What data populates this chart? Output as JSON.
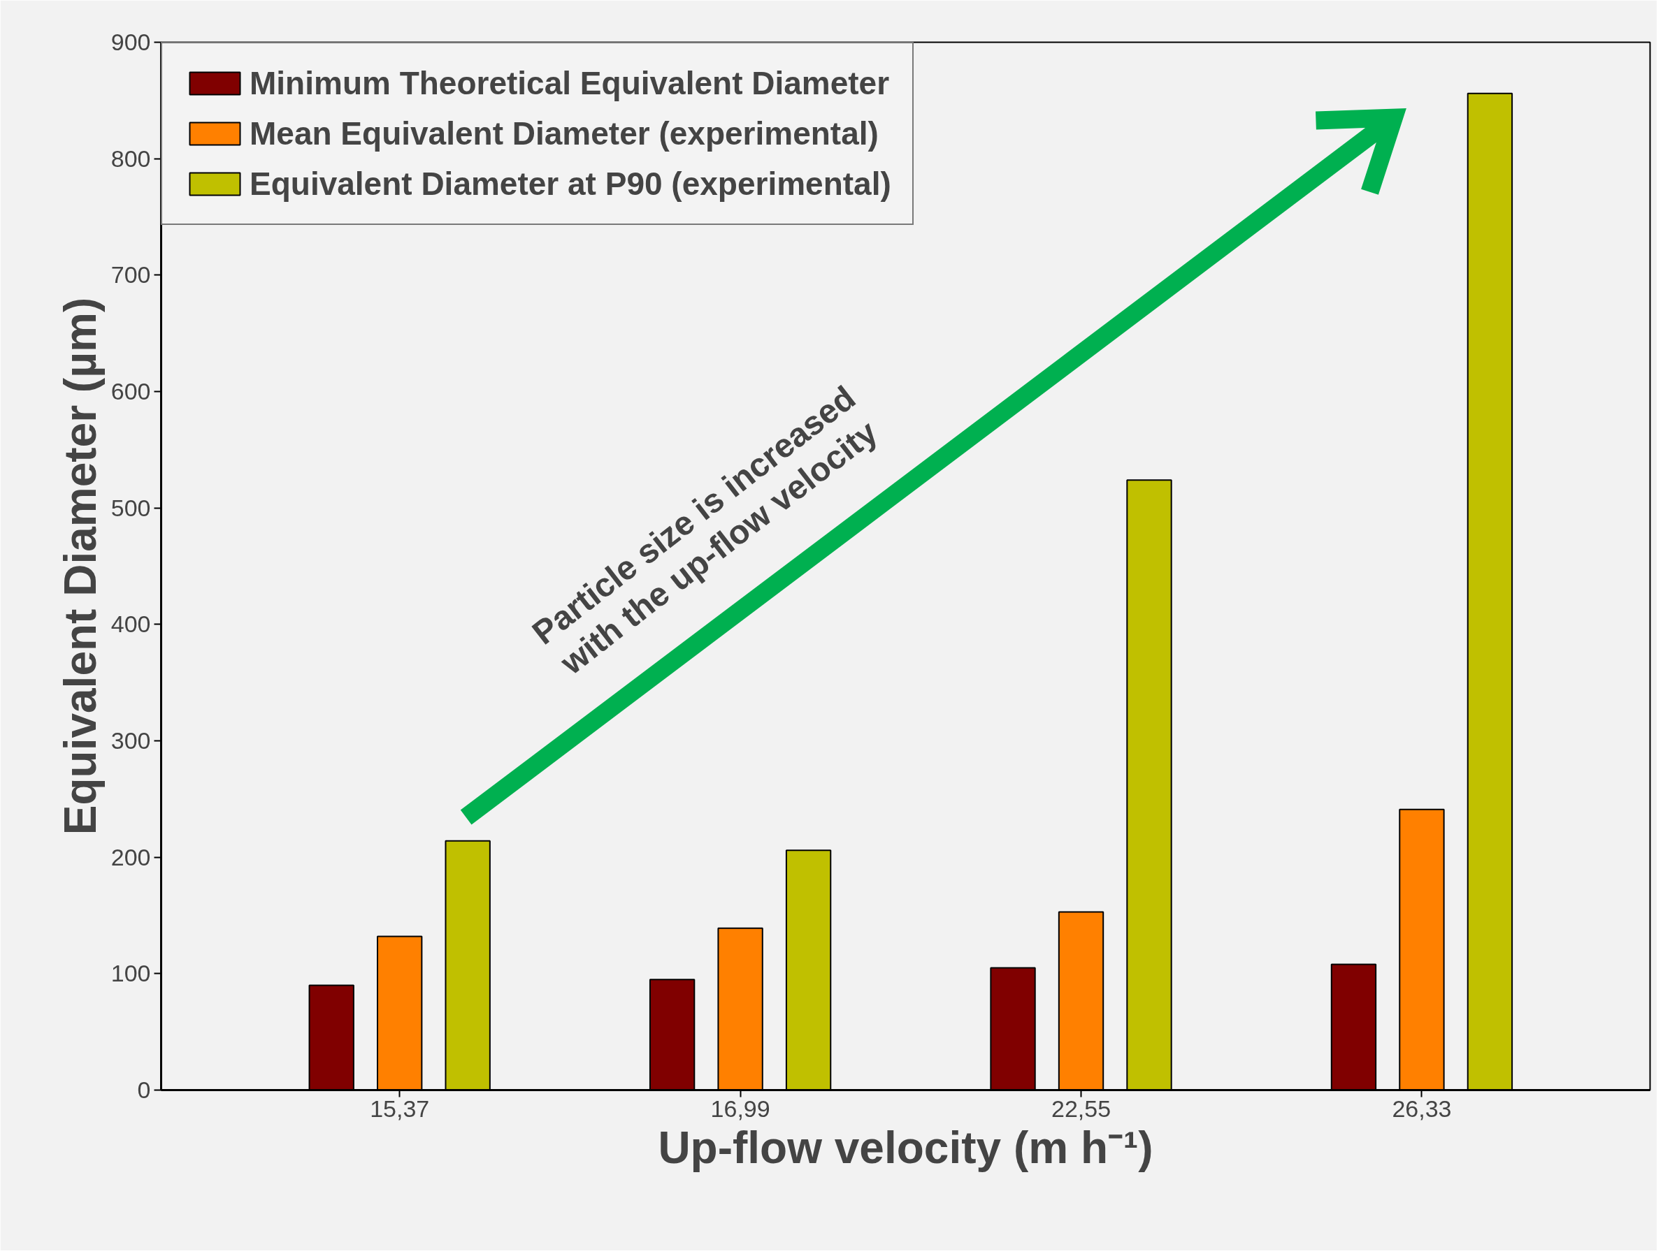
{
  "chart_data": {
    "type": "bar",
    "xlabel": "Up-flow velocity (m h⁻¹)",
    "ylabel": "Equivalent Diameter (µm)",
    "categories": [
      "15,37",
      "16,99",
      "22,55",
      "26,33"
    ],
    "series": [
      {
        "name": "Minimum Theoretical Equivalent Diameter",
        "color": "#800000",
        "values": [
          90,
          95,
          105,
          108
        ]
      },
      {
        "name": "Mean Equivalent Diameter (experimental)",
        "color": "#ff8000",
        "values": [
          132,
          139,
          153,
          241
        ]
      },
      {
        "name": "Equivalent Diameter at P90 (experimental)",
        "color": "#c0c000",
        "values": [
          214,
          206,
          524,
          856
        ]
      }
    ],
    "ylim": [
      0,
      900
    ],
    "yticks": [
      0,
      100,
      200,
      300,
      400,
      500,
      600,
      700,
      800,
      900
    ],
    "legend": "top left",
    "grid": false,
    "annotations": [
      "Particle size is increased\nwith the up-flow velocity"
    ]
  }
}
